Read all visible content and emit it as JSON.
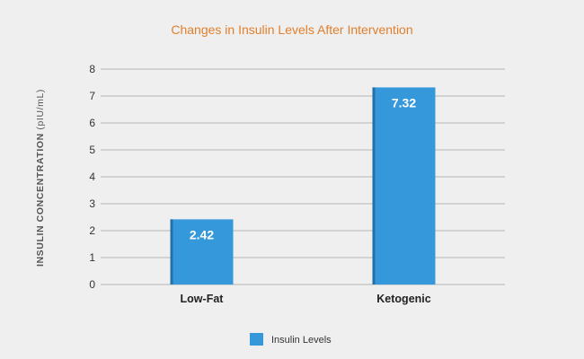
{
  "chart_data": {
    "type": "bar",
    "title": "Changes in Insulin Levels After Intervention",
    "ylabel_main": "INSULIN CONCENTRATION",
    "ylabel_unit": "(pIU/mL)",
    "categories": [
      "Low-Fat",
      "Ketogenic"
    ],
    "series": [
      {
        "name": "Insulin Levels",
        "values": [
          2.42,
          7.32
        ],
        "color": "#3498db"
      }
    ],
    "ylim": [
      0,
      8
    ],
    "yticks": [
      0,
      1,
      2,
      3,
      4,
      5,
      6,
      7,
      8
    ],
    "grid": true,
    "legend_position": "bottom",
    "data_labels": true
  }
}
